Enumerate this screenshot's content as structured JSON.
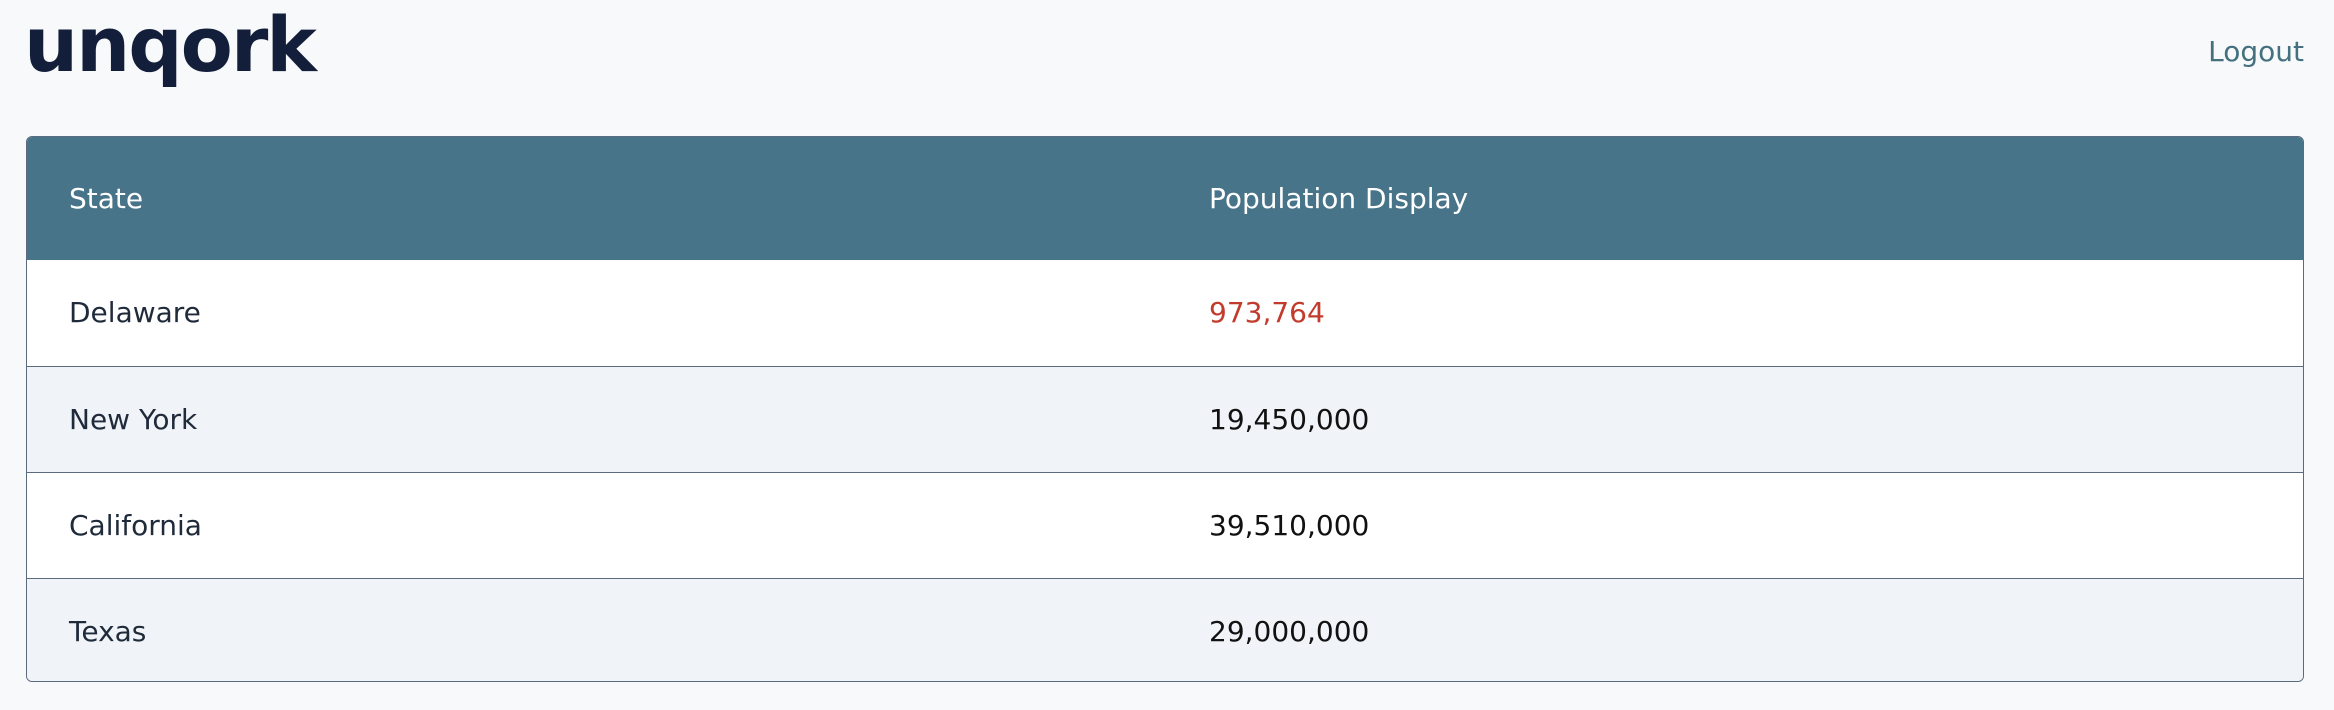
{
  "header": {
    "logo_text": "unqork",
    "logout_label": "Logout"
  },
  "table": {
    "columns": [
      "State",
      "Population Display"
    ],
    "rows": [
      {
        "state": "Delaware",
        "population": "973,764"
      },
      {
        "state": "New York",
        "population": "19,450,000"
      },
      {
        "state": "California",
        "population": "39,510,000"
      },
      {
        "state": "Texas",
        "population": "29,000,000"
      }
    ]
  },
  "colors": {
    "header_bg": "#477489",
    "logo": "#131f3a",
    "logout": "#44707f",
    "highlight_value": "#c23b2c",
    "alt_row_bg": "#f0f3f7"
  }
}
